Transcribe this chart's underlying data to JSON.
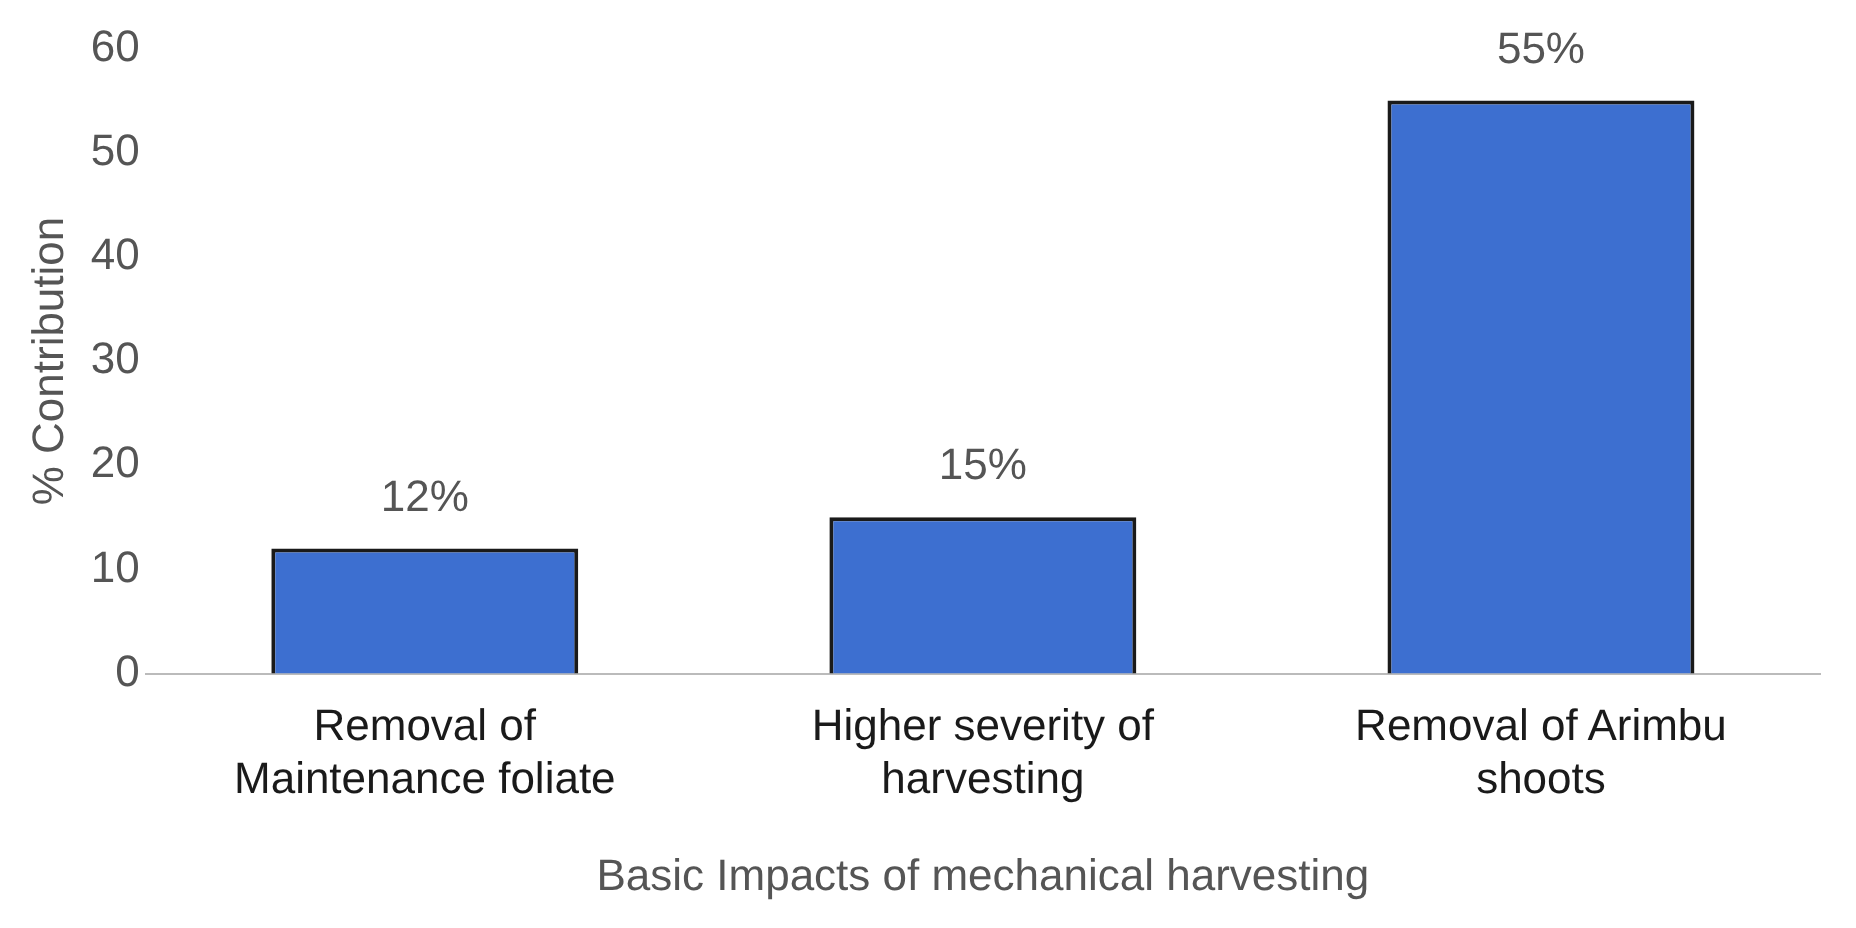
{
  "chart_data": {
    "type": "bar",
    "xlabel": "Basic Impacts of mechanical harvesting",
    "ylabel": "% Contribution",
    "categories": [
      "Removal of\nMaintenance foliate",
      "Higher severity of\nharvesting",
      "Removal of Arimbu\nshoots"
    ],
    "values": [
      12,
      15,
      55
    ],
    "value_labels": [
      "12%",
      "15%",
      "55%"
    ],
    "color": "#3d6fd0",
    "ylim": [
      0,
      60
    ],
    "yticks": [
      0,
      10,
      20,
      30,
      40,
      50,
      60
    ],
    "grid": false,
    "legend": false
  }
}
